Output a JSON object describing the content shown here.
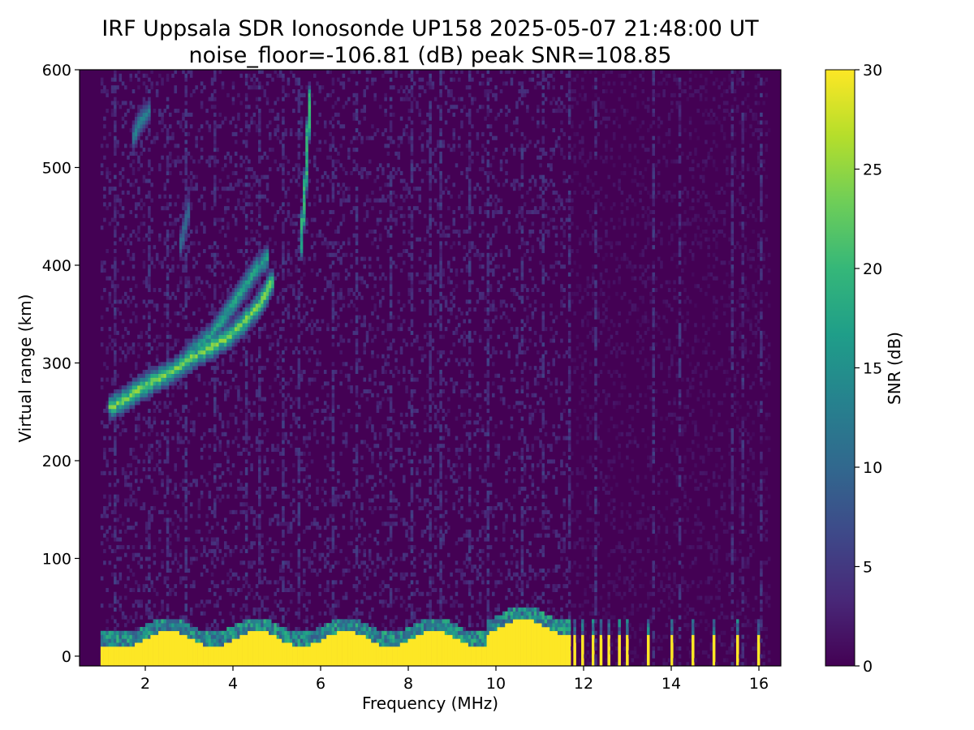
{
  "chart_data": {
    "type": "heatmap",
    "title": "IRF Uppsala SDR Ionosonde UP158 2025-05-07 21:48:00  UT",
    "subtitle": "noise_floor=-106.81 (dB) peak SNR=108.85",
    "xlabel": "Frequency (MHz)",
    "ylabel": "Virtual range (km)",
    "colorbar_label": "SNR (dB)",
    "xlim": [
      0.5,
      16.5
    ],
    "ylim": [
      -10,
      600
    ],
    "x_ticks": [
      "2",
      "4",
      "6",
      "8",
      "10",
      "12",
      "14",
      "16"
    ],
    "y_ticks": [
      "0",
      "100",
      "200",
      "300",
      "400",
      "500",
      "600"
    ],
    "colorbar_ticks": [
      "0",
      "5",
      "10",
      "15",
      "20",
      "25",
      "30"
    ],
    "colorbar_range": [
      0,
      30
    ],
    "colormap": [
      "#440154",
      "#482878",
      "#3e4989",
      "#31688e",
      "#26828e",
      "#1f9e89",
      "#35b779",
      "#6ece58",
      "#b5de2b",
      "#fde725"
    ],
    "sweep_frequency_range": [
      1.0,
      16.3
    ],
    "ground_clutter": {
      "range_km": [
        -10,
        30
      ],
      "continuous_until_mhz": 11.7,
      "discrete_channels_mhz": [
        11.8,
        12.0,
        12.2,
        12.4,
        12.6,
        12.8,
        13.0,
        13.5,
        14.0,
        14.5,
        15.0,
        15.5,
        16.0
      ],
      "snr_db": 30
    },
    "echo_traces": [
      {
        "points": [
          [
            1.2,
            255
          ],
          [
            1.6,
            265
          ],
          [
            1.9,
            275
          ],
          [
            2.3,
            285
          ],
          [
            2.7,
            295
          ],
          [
            3.0,
            305
          ],
          [
            3.4,
            315
          ],
          [
            3.8,
            325
          ],
          [
            4.2,
            340
          ],
          [
            4.6,
            360
          ],
          [
            4.9,
            385
          ]
        ],
        "snr_db": 22
      },
      {
        "points": [
          [
            3.0,
            310
          ],
          [
            3.5,
            330
          ],
          [
            3.9,
            355
          ],
          [
            4.2,
            375
          ],
          [
            4.5,
            395
          ],
          [
            4.8,
            410
          ]
        ],
        "snr_db": 16
      },
      {
        "points": [
          [
            5.55,
            420
          ],
          [
            5.62,
            460
          ],
          [
            5.68,
            500
          ],
          [
            5.72,
            540
          ],
          [
            5.75,
            575
          ]
        ],
        "snr_db": 18
      },
      {
        "points": [
          [
            1.7,
            530
          ],
          [
            1.9,
            550
          ],
          [
            2.1,
            560
          ]
        ],
        "snr_db": 12
      },
      {
        "points": [
          [
            2.8,
            420
          ],
          [
            2.9,
            440
          ],
          [
            3.0,
            460
          ]
        ],
        "snr_db": 9
      }
    ],
    "interference_lines_mhz": [
      1.3,
      2.1,
      2.5,
      2.9,
      3.6,
      4.3,
      4.6,
      5.15,
      5.5,
      6.3,
      6.8,
      7.6,
      8.1,
      8.5,
      8.75,
      9.4,
      9.8,
      10.6,
      11.1,
      11.7,
      12.3,
      13.6,
      14.2,
      15.4,
      15.65,
      16.05
    ],
    "noise_snr_db": 1.5
  }
}
